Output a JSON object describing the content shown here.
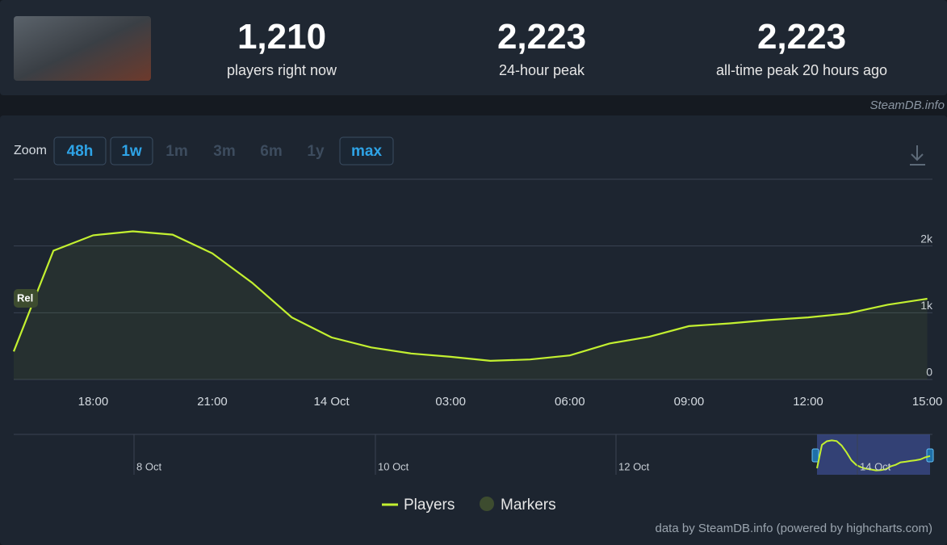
{
  "header": {
    "stats": [
      {
        "value": "1,210",
        "label": "players right now"
      },
      {
        "value": "2,223",
        "label": "24-hour peak"
      },
      {
        "value": "2,223",
        "label": "all-time peak 20 hours ago"
      }
    ],
    "source": "SteamDB.info"
  },
  "zoom": {
    "label": "Zoom",
    "options": [
      {
        "label": "48h",
        "enabled": true
      },
      {
        "label": "1w",
        "enabled": true
      },
      {
        "label": "1m",
        "enabled": false
      },
      {
        "label": "3m",
        "enabled": false
      },
      {
        "label": "6m",
        "enabled": false
      },
      {
        "label": "1y",
        "enabled": false
      },
      {
        "label": "max",
        "enabled": true
      }
    ]
  },
  "chart_data": {
    "type": "line",
    "categories": [
      null,
      null,
      "18:00",
      null,
      null,
      "21:00",
      null,
      null,
      "14 Oct",
      null,
      null,
      "03:00",
      null,
      null,
      "06:00",
      null,
      null,
      "09:00",
      null,
      null,
      "12:00",
      null,
      null,
      "15:00"
    ],
    "series": [
      {
        "name": "Players",
        "color": "#c3f030",
        "values": [
          420,
          1930,
          2160,
          2220,
          2170,
          1890,
          1450,
          930,
          630,
          480,
          390,
          340,
          280,
          300,
          360,
          540,
          640,
          800,
          840,
          890,
          930,
          990,
          1120,
          1210
        ]
      }
    ],
    "marker_series": {
      "name": "Markers",
      "color": "#3d4c2f"
    },
    "annotations": [
      "Rel"
    ],
    "ylim": [
      0,
      3000
    ],
    "yticks": [
      0,
      {
        "value": 1000,
        "label": "1k"
      },
      {
        "value": 2000,
        "label": "2k"
      }
    ],
    "grid": true,
    "navigator_labels": [
      "8 Oct",
      "10 Oct",
      "12 Oct",
      "14 Oct"
    ]
  },
  "credit": "data by SteamDB.info (powered by highcharts.com)"
}
